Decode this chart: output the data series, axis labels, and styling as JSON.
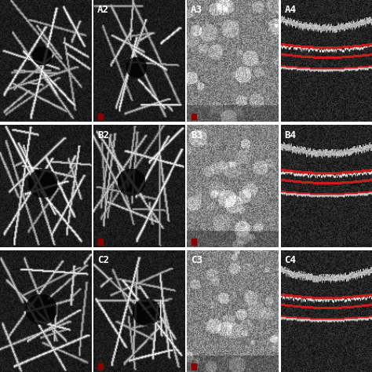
{
  "grid_rows": 3,
  "grid_cols": 4,
  "labels": [
    [
      "",
      "A2",
      "A3",
      "A4"
    ],
    [
      "",
      "B2",
      "B3",
      "B4"
    ],
    [
      "",
      "C2",
      "C3",
      "C4"
    ]
  ],
  "label_color": "white",
  "label_fontsize": 9,
  "background_color": "white",
  "border_color": "white",
  "border_width": 1,
  "seed": 42
}
